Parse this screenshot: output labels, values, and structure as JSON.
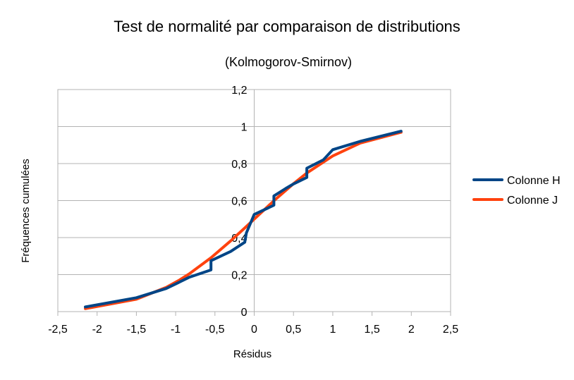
{
  "chart_data": {
    "type": "line",
    "title": "Test de normalité par comparaison de distributions",
    "subtitle": "(Kolmogorov-Smirnov)",
    "xlabel": "Résidus",
    "ylabel": "Fréquences cumulées",
    "xlim": [
      -2.5,
      2.5
    ],
    "ylim": [
      0,
      1.2
    ],
    "x_ticks": [
      "-2,5",
      "-2",
      "-1,5",
      "-1",
      "-0,5",
      "0",
      "0,5",
      "1",
      "1,5",
      "2",
      "2,5"
    ],
    "y_ticks": [
      "0",
      "0,2",
      "0,4",
      "0,6",
      "0,8",
      "1",
      "1,2"
    ],
    "grid": "horizontal",
    "legend_position": "right",
    "series": [
      {
        "name": "Colonne H",
        "color": "#004586",
        "x": [
          -2.15,
          -1.5,
          -1.12,
          -0.95,
          -0.83,
          -0.55,
          -0.55,
          -0.3,
          -0.12,
          -0.1,
          0.0,
          0.25,
          0.25,
          0.4,
          0.5,
          0.67,
          0.67,
          0.88,
          1.0,
          1.35,
          1.87
        ],
        "y": [
          0.025,
          0.075,
          0.125,
          0.16,
          0.185,
          0.225,
          0.275,
          0.325,
          0.375,
          0.425,
          0.525,
          0.575,
          0.625,
          0.665,
          0.69,
          0.725,
          0.775,
          0.82,
          0.875,
          0.92,
          0.975
        ]
      },
      {
        "name": "Colonne J",
        "color": "#ff420e",
        "x": [
          -2.15,
          -1.5,
          -1.12,
          -0.95,
          -0.83,
          -0.55,
          -0.3,
          -0.12,
          0.0,
          0.25,
          0.5,
          0.67,
          1.0,
          1.35,
          1.87
        ],
        "y": [
          0.016,
          0.067,
          0.131,
          0.171,
          0.203,
          0.291,
          0.382,
          0.452,
          0.5,
          0.599,
          0.691,
          0.749,
          0.841,
          0.911,
          0.969
        ]
      }
    ]
  }
}
